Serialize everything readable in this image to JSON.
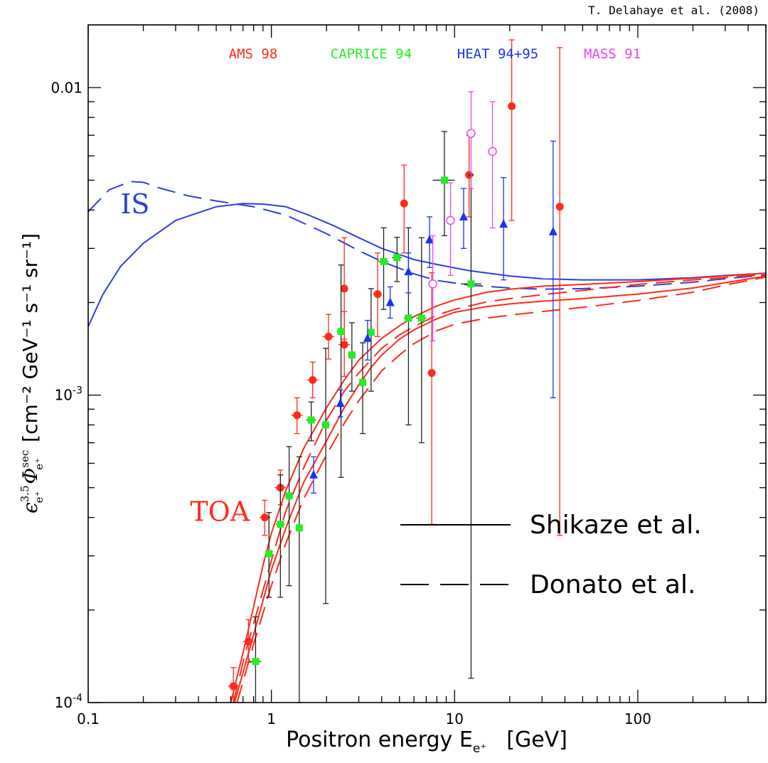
{
  "credit": "T. Delahaye et al. (2008)",
  "chart_data": {
    "type": "scatter",
    "xscale": "log",
    "yscale": "log",
    "xlim": [
      0.1,
      500
    ],
    "ylim": [
      0.0001,
      0.016
    ],
    "grid": false,
    "xlabel": {
      "main": "Positron energy E",
      "sub": "e⁺",
      "unit": "[GeV]"
    },
    "ylabel": {
      "eps": "ϵ",
      "eps_sup": "3.5",
      "eps_sub": "e⁺",
      "phi": "Φ",
      "phi_sup": "sec",
      "phi_sub": "e⁺",
      "unit": "[cm⁻² GeV⁻¹ s⁻¹ sr⁻¹]"
    },
    "x_ticks": [
      {
        "value": 0.1,
        "label": "0.1"
      },
      {
        "value": 1,
        "label": "1"
      },
      {
        "value": 10,
        "label": "10"
      },
      {
        "value": 100,
        "label": "100"
      }
    ],
    "y_ticks": [
      {
        "value": 0.0001,
        "base": "10",
        "exp": "-4"
      },
      {
        "value": 0.001,
        "base": "10",
        "exp": "-3"
      },
      {
        "value": 0.01,
        "label": "0.01"
      }
    ],
    "experiments": [
      {
        "name": "AMS 98",
        "color": "#ff2a1a",
        "marker": "circle"
      },
      {
        "name": "CAPRICE 94",
        "color": "#22ee22",
        "marker": "square"
      },
      {
        "name": "HEAT 94+95",
        "color": "#1a33ee",
        "marker": "triangle"
      },
      {
        "name": "MASS 91",
        "color": "#ee44ee",
        "marker": "open-circle"
      }
    ],
    "curve_legend": [
      {
        "name": "Shikaze et al.",
        "style": "solid"
      },
      {
        "name": "Donato et al.",
        "style": "dashed"
      }
    ],
    "curve_labels": [
      {
        "text": "IS",
        "color": "#2a40e0",
        "x": 0.15,
        "y": 0.0039
      },
      {
        "text": "TOA",
        "color": "#ff2a1a",
        "x": 0.36,
        "y": 0.00039
      }
    ],
    "series": [
      {
        "name": "AMS 98",
        "color": "#ff2a1a",
        "marker": "circle",
        "points": [
          {
            "x": 0.62,
            "y": 0.000113,
            "lo": 9.8e-05,
            "hi": 0.00013,
            "xlo": 0.58,
            "xhi": 0.66
          },
          {
            "x": 0.75,
            "y": 0.000158,
            "lo": 0.000135,
            "hi": 0.000186,
            "xlo": 0.7,
            "xhi": 0.8
          },
          {
            "x": 0.92,
            "y": 0.0004,
            "lo": 0.00035,
            "hi": 0.000455,
            "xlo": 0.86,
            "xhi": 0.99
          },
          {
            "x": 1.12,
            "y": 0.0005,
            "lo": 0.00044,
            "hi": 0.00057,
            "xlo": 1.04,
            "xhi": 1.2
          },
          {
            "x": 1.38,
            "y": 0.00086,
            "lo": 0.00075,
            "hi": 0.00098,
            "xlo": 1.28,
            "xhi": 1.48
          },
          {
            "x": 1.68,
            "y": 0.00112,
            "lo": 0.00098,
            "hi": 0.00128,
            "xlo": 1.56,
            "xhi": 1.8
          },
          {
            "x": 2.05,
            "y": 0.00155,
            "lo": 0.00131,
            "hi": 0.00183,
            "xlo": 1.9,
            "xhi": 2.2
          },
          {
            "x": 2.5,
            "y": 0.00146,
            "lo": 0.00115,
            "hi": 0.00187,
            "xlo": 2.32,
            "xhi": 2.68
          },
          {
            "x": 2.5,
            "y": 0.00222,
            "lo": 0.00152,
            "hi": 0.00325,
            "xlo": 2.38,
            "xhi": 2.62
          },
          {
            "x": 3.8,
            "y": 0.00213,
            "lo": 0.00155,
            "hi": 0.0029,
            "xlo": 3.6,
            "xhi": 4.0
          },
          {
            "x": 5.3,
            "y": 0.0042,
            "lo": 0.0029,
            "hi": 0.0056,
            "xlo": 5.1,
            "xhi": 5.5
          },
          {
            "x": 7.5,
            "y": 0.00118,
            "lo": 0.00038,
            "hi": 0.0025,
            "xlo": 7.3,
            "xhi": 7.7
          },
          {
            "x": 12,
            "y": 0.0052,
            "lo": 0.0038,
            "hi": 0.007,
            "xlo": 11.6,
            "xhi": 12.4
          },
          {
            "x": 20.5,
            "y": 0.0087,
            "lo": 0.0037,
            "hi": 0.0143,
            "xlo": 20,
            "xhi": 21
          },
          {
            "x": 37.5,
            "y": 0.0041,
            "lo": 0.00035,
            "hi": 0.0135,
            "xlo": 37,
            "xhi": 38
          }
        ]
      },
      {
        "name": "CAPRICE 94",
        "color": "#22ee22",
        "marker": "square",
        "points": [
          {
            "x": 0.82,
            "y": 0.000136,
            "lo": 0.0001,
            "hi": 0.00019,
            "xlo": 0.76,
            "xhi": 0.88
          },
          {
            "x": 0.97,
            "y": 0.000305,
            "lo": 0.00022,
            "hi": 0.000415,
            "xlo": 0.93,
            "xhi": 1.01
          },
          {
            "x": 1.12,
            "y": 0.00038,
            "lo": 0.00022,
            "hi": 0.00055,
            "xlo": 1.06,
            "xhi": 1.18
          },
          {
            "x": 1.25,
            "y": 0.00047,
            "lo": 0.00024,
            "hi": 0.00068,
            "xlo": 1.19,
            "xhi": 1.31
          },
          {
            "x": 1.42,
            "y": 0.00037,
            "lo": 0.0001,
            "hi": 0.00063,
            "xlo": 1.36,
            "xhi": 1.48
          },
          {
            "x": 1.65,
            "y": 0.00083,
            "lo": 0.00071,
            "hi": 0.00095,
            "xlo": 1.55,
            "xhi": 1.75
          },
          {
            "x": 1.98,
            "y": 0.0008,
            "lo": 0.00021,
            "hi": 0.00142,
            "xlo": 1.88,
            "xhi": 2.08
          },
          {
            "x": 2.4,
            "y": 0.00161,
            "lo": 0.00054,
            "hi": 0.00265,
            "xlo": 2.28,
            "xhi": 2.52
          },
          {
            "x": 2.75,
            "y": 0.00135,
            "lo": 0.00103,
            "hi": 0.00172,
            "xlo": 2.62,
            "xhi": 2.88
          },
          {
            "x": 3.15,
            "y": 0.0011,
            "lo": 0.00075,
            "hi": 0.00148,
            "xlo": 3.0,
            "xhi": 3.3
          },
          {
            "x": 3.5,
            "y": 0.0016,
            "lo": 0.00103,
            "hi": 0.00222,
            "xlo": 3.35,
            "xhi": 3.65
          },
          {
            "x": 4.1,
            "y": 0.00272,
            "lo": 0.0019,
            "hi": 0.0035,
            "xlo": 3.85,
            "xhi": 4.35
          },
          {
            "x": 4.85,
            "y": 0.0028,
            "lo": 0.00234,
            "hi": 0.00326,
            "xlo": 4.55,
            "xhi": 5.15
          },
          {
            "x": 5.6,
            "y": 0.00178,
            "lo": 0.0008,
            "hi": 0.0035,
            "xlo": 5.3,
            "xhi": 5.9
          },
          {
            "x": 6.6,
            "y": 0.00178,
            "lo": 0.0007,
            "hi": 0.00325,
            "xlo": 6.2,
            "xhi": 7.0
          },
          {
            "x": 8.8,
            "y": 0.005,
            "lo": 0.0033,
            "hi": 0.0072,
            "xlo": 7.6,
            "xhi": 10.0
          },
          {
            "x": 12.3,
            "y": 0.0023,
            "lo": 0.00012,
            "hi": 0.0052,
            "xlo": 10.8,
            "xhi": 14.0
          }
        ]
      },
      {
        "name": "HEAT 94+95",
        "color": "#1a33ee",
        "marker": "triangle",
        "points": [
          {
            "x": 1.7,
            "y": 0.00055,
            "lo": 0.00048,
            "hi": 0.00063,
            "xlo": 1.7,
            "xhi": 1.7
          },
          {
            "x": 2.38,
            "y": 0.00094,
            "lo": 0.00085,
            "hi": 0.00104,
            "xlo": 2.38,
            "xhi": 2.38
          },
          {
            "x": 3.35,
            "y": 0.00153,
            "lo": 0.0013,
            "hi": 0.00175,
            "xlo": 3.35,
            "xhi": 3.35
          },
          {
            "x": 4.45,
            "y": 0.002,
            "lo": 0.00178,
            "hi": 0.00225,
            "xlo": 4.45,
            "xhi": 4.45
          },
          {
            "x": 5.6,
            "y": 0.00252,
            "lo": 0.00215,
            "hi": 0.0029,
            "xlo": 5.6,
            "xhi": 5.6
          },
          {
            "x": 7.3,
            "y": 0.0032,
            "lo": 0.0026,
            "hi": 0.0038,
            "xlo": 7.3,
            "xhi": 7.3
          },
          {
            "x": 11.2,
            "y": 0.0038,
            "lo": 0.003,
            "hi": 0.0047,
            "xlo": 11.2,
            "xhi": 11.2
          },
          {
            "x": 18.5,
            "y": 0.0036,
            "lo": 0.00237,
            "hi": 0.0051,
            "xlo": 18.5,
            "xhi": 18.5
          },
          {
            "x": 34.5,
            "y": 0.0034,
            "lo": 0.00098,
            "hi": 0.0067,
            "xlo": 34.5,
            "xhi": 34.5
          }
        ]
      },
      {
        "name": "MASS 91",
        "color": "#ee44ee",
        "marker": "open-circle",
        "points": [
          {
            "x": 7.6,
            "y": 0.0023,
            "lo": 0.0015,
            "hi": 0.0033,
            "xlo": 7.6,
            "xhi": 7.6
          },
          {
            "x": 9.5,
            "y": 0.0037,
            "lo": 0.00245,
            "hi": 0.0049,
            "xlo": 9.5,
            "xhi": 9.5
          },
          {
            "x": 12.3,
            "y": 0.0071,
            "lo": 0.0047,
            "hi": 0.0097,
            "xlo": 12.3,
            "xhi": 12.3
          },
          {
            "x": 16.1,
            "y": 0.0062,
            "lo": 0.0035,
            "hi": 0.009,
            "xlo": 16.1,
            "xhi": 16.1
          }
        ]
      }
    ],
    "curves": [
      {
        "name": "IS Shikaze",
        "color": "#2a40e0",
        "dash": "solid",
        "points": [
          [
            0.1,
            0.00167
          ],
          [
            0.12,
            0.00212
          ],
          [
            0.15,
            0.00262
          ],
          [
            0.2,
            0.00312
          ],
          [
            0.3,
            0.0037
          ],
          [
            0.5,
            0.0041
          ],
          [
            0.7,
            0.0042
          ],
          [
            0.9,
            0.00418
          ],
          [
            1.2,
            0.0041
          ],
          [
            1.6,
            0.00385
          ],
          [
            2.2,
            0.00355
          ],
          [
            3,
            0.00325
          ],
          [
            4,
            0.003
          ],
          [
            6,
            0.00276
          ],
          [
            8,
            0.00266
          ],
          [
            12,
            0.00254
          ],
          [
            20,
            0.00244
          ],
          [
            30,
            0.00239
          ],
          [
            50,
            0.00237
          ],
          [
            100,
            0.00237
          ],
          [
            200,
            0.00241
          ],
          [
            300,
            0.00245
          ],
          [
            500,
            0.00249
          ]
        ]
      },
      {
        "name": "IS Donato",
        "color": "#2a40e0",
        "dash": "dashed",
        "points": [
          [
            0.1,
            0.00395
          ],
          [
            0.13,
            0.00465
          ],
          [
            0.17,
            0.00495
          ],
          [
            0.2,
            0.00492
          ],
          [
            0.25,
            0.0047
          ],
          [
            0.35,
            0.00445
          ],
          [
            0.5,
            0.00428
          ],
          [
            0.8,
            0.0041
          ],
          [
            1.2,
            0.00385
          ],
          [
            2,
            0.00335
          ],
          [
            3,
            0.00295
          ],
          [
            4,
            0.00272
          ],
          [
            6,
            0.00248
          ],
          [
            8,
            0.00236
          ],
          [
            12,
            0.00228
          ],
          [
            20,
            0.00223
          ],
          [
            30,
            0.00221
          ],
          [
            50,
            0.00222
          ],
          [
            100,
            0.00226
          ],
          [
            200,
            0.00233
          ],
          [
            300,
            0.00239
          ],
          [
            500,
            0.00246
          ]
        ]
      },
      {
        "name": "TOA Shikaze A",
        "color": "#ff2a1a",
        "dash": "solid",
        "points": [
          [
            0.6,
            0.0001
          ],
          [
            0.7,
            0.000145
          ],
          [
            0.8,
            0.000205
          ],
          [
            0.9,
            0.00028
          ],
          [
            1.0,
            0.000355
          ],
          [
            1.2,
            0.00049
          ],
          [
            1.5,
            0.00067
          ],
          [
            2,
            0.00091
          ],
          [
            2.5,
            0.00112
          ],
          [
            3,
            0.0013
          ],
          [
            4,
            0.00153
          ],
          [
            5,
            0.00168
          ],
          [
            6,
            0.0018
          ],
          [
            8,
            0.00195
          ],
          [
            10,
            0.00204
          ],
          [
            15,
            0.00216
          ],
          [
            20,
            0.00221
          ],
          [
            30,
            0.00226
          ],
          [
            50,
            0.00229
          ],
          [
            100,
            0.00234
          ],
          [
            200,
            0.0024
          ],
          [
            300,
            0.00244
          ],
          [
            500,
            0.00249
          ]
        ]
      },
      {
        "name": "TOA Shikaze B",
        "color": "#ff2a1a",
        "dash": "solid",
        "points": [
          [
            0.63,
            0.0001
          ],
          [
            0.75,
            0.000145
          ],
          [
            0.85,
            0.00019
          ],
          [
            1.0,
            0.00027
          ],
          [
            1.2,
            0.00037
          ],
          [
            1.5,
            0.00052
          ],
          [
            2,
            0.00071
          ],
          [
            2.5,
            0.00091
          ],
          [
            3,
            0.00108
          ],
          [
            3.5,
            0.00123
          ],
          [
            4,
            0.00135
          ],
          [
            5,
            0.00152
          ],
          [
            6,
            0.00163
          ],
          [
            8,
            0.00177
          ],
          [
            10,
            0.00186
          ],
          [
            15,
            0.00194
          ],
          [
            20,
            0.00198
          ],
          [
            30,
            0.00202
          ],
          [
            50,
            0.00206
          ],
          [
            100,
            0.00213
          ],
          [
            200,
            0.00223
          ],
          [
            300,
            0.00232
          ],
          [
            500,
            0.00244
          ]
        ]
      },
      {
        "name": "TOA Donato A",
        "color": "#ff2a1a",
        "dash": "dashed",
        "points": [
          [
            0.62,
            0.0001
          ],
          [
            0.72,
            0.000145
          ],
          [
            0.85,
            0.000205
          ],
          [
            1.0,
            0.00029
          ],
          [
            1.2,
            0.00042
          ],
          [
            1.5,
            0.00058
          ],
          [
            2,
            0.00083
          ],
          [
            2.5,
            0.00103
          ],
          [
            3,
            0.00118
          ],
          [
            4,
            0.00142
          ],
          [
            5,
            0.00157
          ],
          [
            6,
            0.00167
          ],
          [
            8,
            0.00182
          ],
          [
            10,
            0.0019
          ],
          [
            15,
            0.00201
          ],
          [
            20,
            0.00206
          ],
          [
            30,
            0.00212
          ],
          [
            50,
            0.00219
          ],
          [
            100,
            0.00229
          ],
          [
            200,
            0.00237
          ],
          [
            300,
            0.00241
          ],
          [
            500,
            0.00247
          ]
        ]
      },
      {
        "name": "TOA Donato B",
        "color": "#ff2a1a",
        "dash": "dashed",
        "points": [
          [
            0.65,
            0.0001
          ],
          [
            0.8,
            0.000155
          ],
          [
            1.0,
            0.00024
          ],
          [
            1.2,
            0.00033
          ],
          [
            1.5,
            0.00046
          ],
          [
            2,
            0.00064
          ],
          [
            2.5,
            0.00081
          ],
          [
            3,
            0.00096
          ],
          [
            3.5,
            0.00108
          ],
          [
            4,
            0.0012
          ],
          [
            5,
            0.00135
          ],
          [
            6,
            0.00147
          ],
          [
            8,
            0.00162
          ],
          [
            10,
            0.0017
          ],
          [
            15,
            0.00178
          ],
          [
            20,
            0.00182
          ],
          [
            30,
            0.00187
          ],
          [
            50,
            0.00193
          ],
          [
            100,
            0.00203
          ],
          [
            200,
            0.00216
          ],
          [
            300,
            0.00228
          ],
          [
            500,
            0.00242
          ]
        ]
      }
    ]
  }
}
